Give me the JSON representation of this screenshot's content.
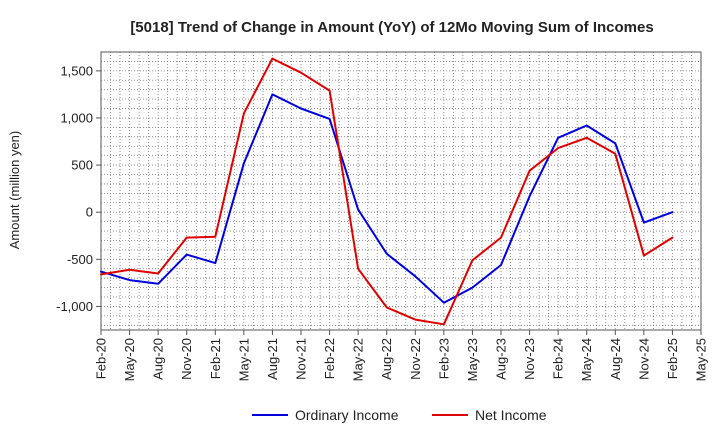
{
  "chart_data": {
    "type": "line",
    "title": "[5018]  Trend of Change in Amount (YoY) of 12Mo Moving Sum of Incomes",
    "xlabel": "",
    "ylabel": "Amount (million yen)",
    "ylim": [
      -1250,
      1700
    ],
    "yticks": [
      -1000,
      -500,
      0,
      500,
      1000,
      1500
    ],
    "ytick_labels": [
      "-1,000",
      "-500",
      "0",
      "500",
      "1,000",
      "1,500"
    ],
    "categories": [
      "Feb-20",
      "May-20",
      "Aug-20",
      "Nov-20",
      "Feb-21",
      "May-21",
      "Aug-21",
      "Nov-21",
      "Feb-22",
      "May-22",
      "Aug-22",
      "Nov-22",
      "Feb-23",
      "May-23",
      "Aug-23",
      "Nov-23",
      "Feb-24",
      "May-24",
      "Aug-24",
      "Nov-24",
      "Feb-25",
      "May-25"
    ],
    "series": [
      {
        "name": "Ordinary Income",
        "color": "#0000dd",
        "values": [
          -630,
          -720,
          -760,
          -450,
          -540,
          520,
          1250,
          1100,
          990,
          30,
          -440,
          -680,
          -960,
          -800,
          -560,
          170,
          790,
          920,
          730,
          -110,
          0,
          null
        ]
      },
      {
        "name": "Net Income",
        "color": "#dd0000",
        "values": [
          -660,
          -610,
          -650,
          -270,
          -260,
          1050,
          1630,
          1480,
          1290,
          -600,
          -1010,
          -1140,
          -1190,
          -510,
          -270,
          440,
          680,
          790,
          620,
          -460,
          -270,
          null
        ]
      }
    ],
    "grid": true,
    "legend_position": "bottom"
  }
}
